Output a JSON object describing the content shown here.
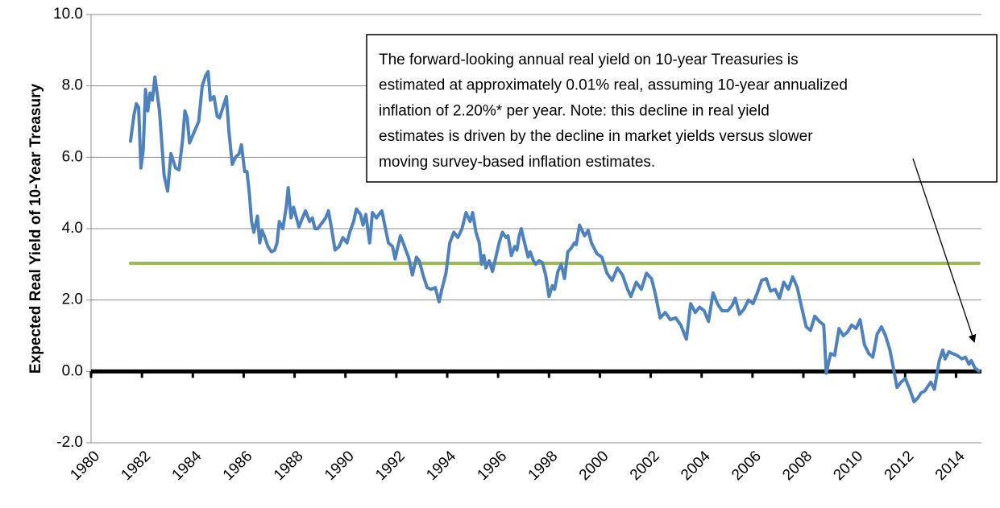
{
  "chart_data": {
    "type": "line",
    "y_label": "Expected Real Yield of 10-Year Treasury",
    "annotation": {
      "lines": [
        "The forward-looking annual real yield on 10-year Treasuries is",
        "estimated at approximately 0.01% real, assuming 10-year annualized",
        "inflation of 2.20%* per year.  Note: this decline in real yield",
        "estimates is driven by the decline in market yields versus slower",
        "moving survey-based inflation estimates."
      ]
    },
    "xlim": [
      1980,
      2015
    ],
    "xticks": [
      1980,
      1982,
      1984,
      1986,
      1988,
      1990,
      1992,
      1994,
      1996,
      1998,
      2000,
      2002,
      2004,
      2006,
      2008,
      2010,
      2012,
      2014
    ],
    "ylim": [
      -2,
      10
    ],
    "yticks": [
      {
        "value": -2,
        "label": "-2.0"
      },
      {
        "value": 0,
        "label": "0.0"
      },
      {
        "value": 2,
        "label": "2.0"
      },
      {
        "value": 4,
        "label": "4.0"
      },
      {
        "value": 6,
        "label": "6.0"
      },
      {
        "value": 8,
        "label": "8.0"
      },
      {
        "value": 10,
        "label": "10.0"
      }
    ],
    "grid": true,
    "series": [
      {
        "color": "#4f81bd",
        "x": [
          1981.55,
          1981.69,
          1981.78,
          1981.87,
          1981.96,
          1982.05,
          1982.14,
          1982.23,
          1982.32,
          1982.41,
          1982.51,
          1982.69,
          1982.87,
          1983.01,
          1983.14,
          1983.32,
          1983.46,
          1983.6,
          1983.69,
          1983.78,
          1983.87,
          1984.05,
          1984.23,
          1984.37,
          1984.51,
          1984.6,
          1984.69,
          1984.83,
          1984.96,
          1985.05,
          1985.23,
          1985.32,
          1985.41,
          1985.55,
          1985.68,
          1985.82,
          1985.91,
          1986.04,
          1986.13,
          1986.22,
          1986.31,
          1986.4,
          1986.54,
          1986.63,
          1986.72,
          1986.81,
          1986.95,
          1987.09,
          1987.22,
          1987.31,
          1987.4,
          1987.54,
          1987.67,
          1987.75,
          1987.86,
          1987.96,
          1988.17,
          1988.28,
          1988.43,
          1988.59,
          1988.7,
          1988.8,
          1988.91,
          1989.12,
          1989.22,
          1989.33,
          1989.43,
          1989.59,
          1989.75,
          1989.9,
          1990.06,
          1990.17,
          1990.32,
          1990.43,
          1990.59,
          1990.69,
          1990.8,
          1990.95,
          1991.06,
          1991.22,
          1991.32,
          1991.43,
          1991.53,
          1991.69,
          1991.85,
          1991.95,
          1992.06,
          1992.16,
          1992.27,
          1992.37,
          1992.48,
          1992.63,
          1992.79,
          1992.9,
          1993.05,
          1993.21,
          1993.37,
          1993.53,
          1993.68,
          1993.79,
          1993.95,
          1994.1,
          1994.26,
          1994.42,
          1994.58,
          1994.74,
          1994.9,
          1995.0,
          1995.13,
          1995.26,
          1995.35,
          1995.44,
          1995.52,
          1995.65,
          1995.78,
          1995.91,
          1996.04,
          1996.17,
          1996.31,
          1996.39,
          1996.52,
          1996.65,
          1996.74,
          1996.83,
          1996.91,
          1997.04,
          1997.18,
          1997.26,
          1997.39,
          1997.48,
          1997.61,
          1997.74,
          1997.87,
          1998.0,
          1998.13,
          1998.22,
          1998.35,
          1998.48,
          1998.61,
          1998.74,
          1998.87,
          1999.0,
          1999.07,
          1999.2,
          1999.4,
          1999.54,
          1999.67,
          1999.88,
          2000.08,
          2000.28,
          2000.48,
          2000.69,
          2000.89,
          2001.09,
          2001.22,
          2001.43,
          2001.63,
          2001.83,
          2002.03,
          2002.17,
          2002.37,
          2002.57,
          2002.77,
          2002.98,
          2003.18,
          2003.4,
          2003.57,
          2003.75,
          2003.92,
          2004.1,
          2004.27,
          2004.45,
          2004.62,
          2004.8,
          2005.03,
          2005.2,
          2005.32,
          2005.49,
          2005.67,
          2005.84,
          2006.02,
          2006.19,
          2006.36,
          2006.54,
          2006.71,
          2006.89,
          2007.06,
          2007.23,
          2007.41,
          2007.58,
          2007.76,
          2007.93,
          2008.11,
          2008.28,
          2008.45,
          2008.63,
          2008.8,
          2008.9,
          2009.07,
          2009.23,
          2009.4,
          2009.57,
          2009.73,
          2009.9,
          2010.07,
          2010.23,
          2010.4,
          2010.57,
          2010.73,
          2010.9,
          2011.07,
          2011.23,
          2011.4,
          2011.51,
          2011.68,
          2011.84,
          2012.01,
          2012.18,
          2012.35,
          2012.49,
          2012.63,
          2012.77,
          2012.91,
          2013.01,
          2013.15,
          2013.34,
          2013.48,
          2013.57,
          2013.72,
          2013.86,
          2014.04,
          2014.23,
          2014.37,
          2014.51,
          2014.6,
          2014.74,
          2014.9
        ],
        "values": [
          6.45,
          7.2,
          7.5,
          7.4,
          5.7,
          6.2,
          7.9,
          7.3,
          7.8,
          7.6,
          8.25,
          7.3,
          5.5,
          5.05,
          6.1,
          5.7,
          5.65,
          6.5,
          7.3,
          7.1,
          6.4,
          6.7,
          7.0,
          8.0,
          8.3,
          8.4,
          7.6,
          7.7,
          7.15,
          7.1,
          7.5,
          7.7,
          6.8,
          5.8,
          6.0,
          6.1,
          6.35,
          5.6,
          5.6,
          5.0,
          4.2,
          3.9,
          4.35,
          3.6,
          3.95,
          3.8,
          3.5,
          3.35,
          3.4,
          3.6,
          4.2,
          4.0,
          4.6,
          5.15,
          4.3,
          4.6,
          4.05,
          4.25,
          4.5,
          4.2,
          4.3,
          4.0,
          4.0,
          4.2,
          4.3,
          4.5,
          4.1,
          3.4,
          3.5,
          3.75,
          3.6,
          3.9,
          4.2,
          4.55,
          4.4,
          4.1,
          4.4,
          3.6,
          4.45,
          4.3,
          4.4,
          4.5,
          4.15,
          3.6,
          3.5,
          3.15,
          3.5,
          3.8,
          3.6,
          3.4,
          3.2,
          2.7,
          3.2,
          3.1,
          2.7,
          2.35,
          2.3,
          2.35,
          1.95,
          2.3,
          2.75,
          3.6,
          3.9,
          3.75,
          4.0,
          4.45,
          4.2,
          4.45,
          3.9,
          3.6,
          3.0,
          3.25,
          2.9,
          3.1,
          2.8,
          3.2,
          3.6,
          3.9,
          3.75,
          3.8,
          3.25,
          3.5,
          3.4,
          3.8,
          4.0,
          3.6,
          3.2,
          3.35,
          3.1,
          3.0,
          3.1,
          3.05,
          2.7,
          2.1,
          2.4,
          2.3,
          2.8,
          3.0,
          2.6,
          3.35,
          3.45,
          3.6,
          3.55,
          4.1,
          3.8,
          3.95,
          3.6,
          3.3,
          3.2,
          2.75,
          2.55,
          2.9,
          2.7,
          2.3,
          2.1,
          2.5,
          2.3,
          2.75,
          2.6,
          2.2,
          1.5,
          1.65,
          1.45,
          1.5,
          1.3,
          0.9,
          1.9,
          1.65,
          1.8,
          1.7,
          1.4,
          2.2,
          1.9,
          1.7,
          1.7,
          1.85,
          2.05,
          1.6,
          1.75,
          2.0,
          1.9,
          2.2,
          2.55,
          2.6,
          2.25,
          2.3,
          2.05,
          2.5,
          2.3,
          2.65,
          2.35,
          1.8,
          1.25,
          1.15,
          1.55,
          1.4,
          1.3,
          -0.05,
          0.5,
          0.45,
          1.2,
          1.0,
          1.1,
          1.3,
          1.2,
          1.45,
          0.75,
          0.5,
          0.4,
          1.05,
          1.25,
          1.0,
          0.6,
          0.2,
          -0.45,
          -0.3,
          -0.2,
          -0.5,
          -0.85,
          -0.75,
          -0.6,
          -0.55,
          -0.4,
          -0.3,
          -0.5,
          0.3,
          0.6,
          0.35,
          0.55,
          0.5,
          0.45,
          0.35,
          0.4,
          0.2,
          0.3,
          0.1,
          0.01
        ]
      },
      {
        "color": "#9bbb59",
        "x": [
          1981.55,
          2014.9
        ],
        "values": [
          3.03,
          3.03
        ]
      }
    ]
  }
}
